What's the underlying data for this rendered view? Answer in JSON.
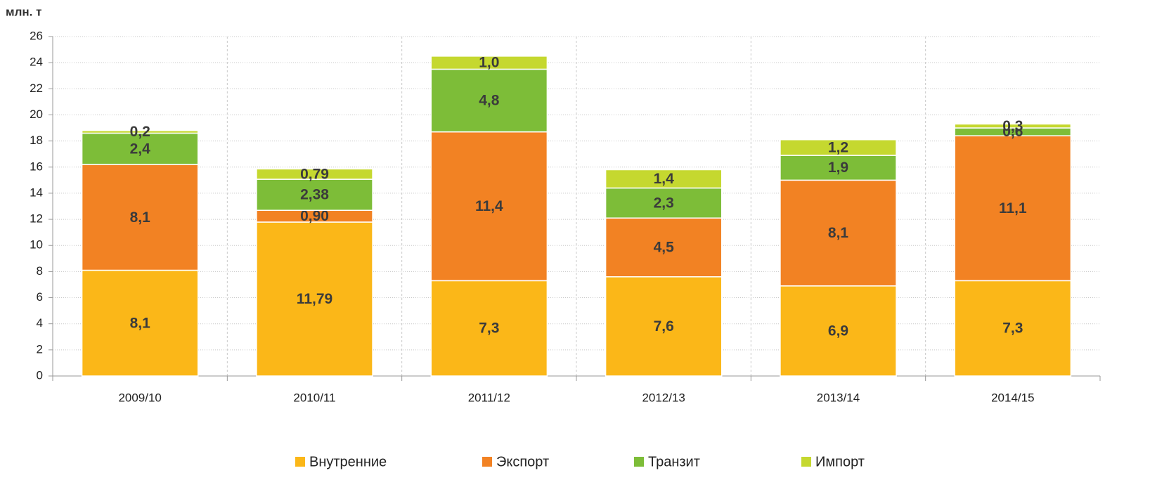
{
  "chart_data": {
    "type": "bar",
    "stacked": true,
    "y_label": "млн. т",
    "categories": [
      "2009/10",
      "2010/11",
      "2011/12",
      "2012/13",
      "2013/14",
      "2014/15"
    ],
    "series": [
      {
        "name": "Внутренние",
        "color": "#fbb718",
        "values": [
          8.1,
          11.79,
          7.3,
          7.6,
          6.9,
          7.3
        ],
        "value_labels": [
          "8,1",
          "11,79",
          "7,3",
          "7,6",
          "6,9",
          "7,3"
        ]
      },
      {
        "name": "Экспорт",
        "color": "#f28223",
        "values": [
          8.1,
          0.9,
          11.4,
          4.5,
          8.1,
          11.1
        ],
        "value_labels": [
          "8,1",
          "0,90",
          "11,4",
          "4,5",
          "8,1",
          "11,1"
        ]
      },
      {
        "name": "Транзит",
        "color": "#7dbd38",
        "values": [
          2.4,
          2.38,
          4.8,
          2.3,
          1.9,
          0.6
        ],
        "value_labels": [
          "2,4",
          "2,38",
          "4,8",
          "2,3",
          "1,9",
          "0,6"
        ]
      },
      {
        "name": "Импорт",
        "color": "#c5d82f",
        "values": [
          0.2,
          0.79,
          1.0,
          1.4,
          1.2,
          0.3
        ],
        "value_labels": [
          "0,2",
          "0,79",
          "1,0",
          "1,4",
          "1,2",
          "0,3"
        ]
      }
    ],
    "ylim": [
      0,
      26
    ],
    "yticks": [
      0,
      2,
      4,
      6,
      8,
      10,
      12,
      14,
      16,
      18,
      20,
      22,
      24,
      26
    ],
    "grid": true,
    "legend": "bottom"
  }
}
